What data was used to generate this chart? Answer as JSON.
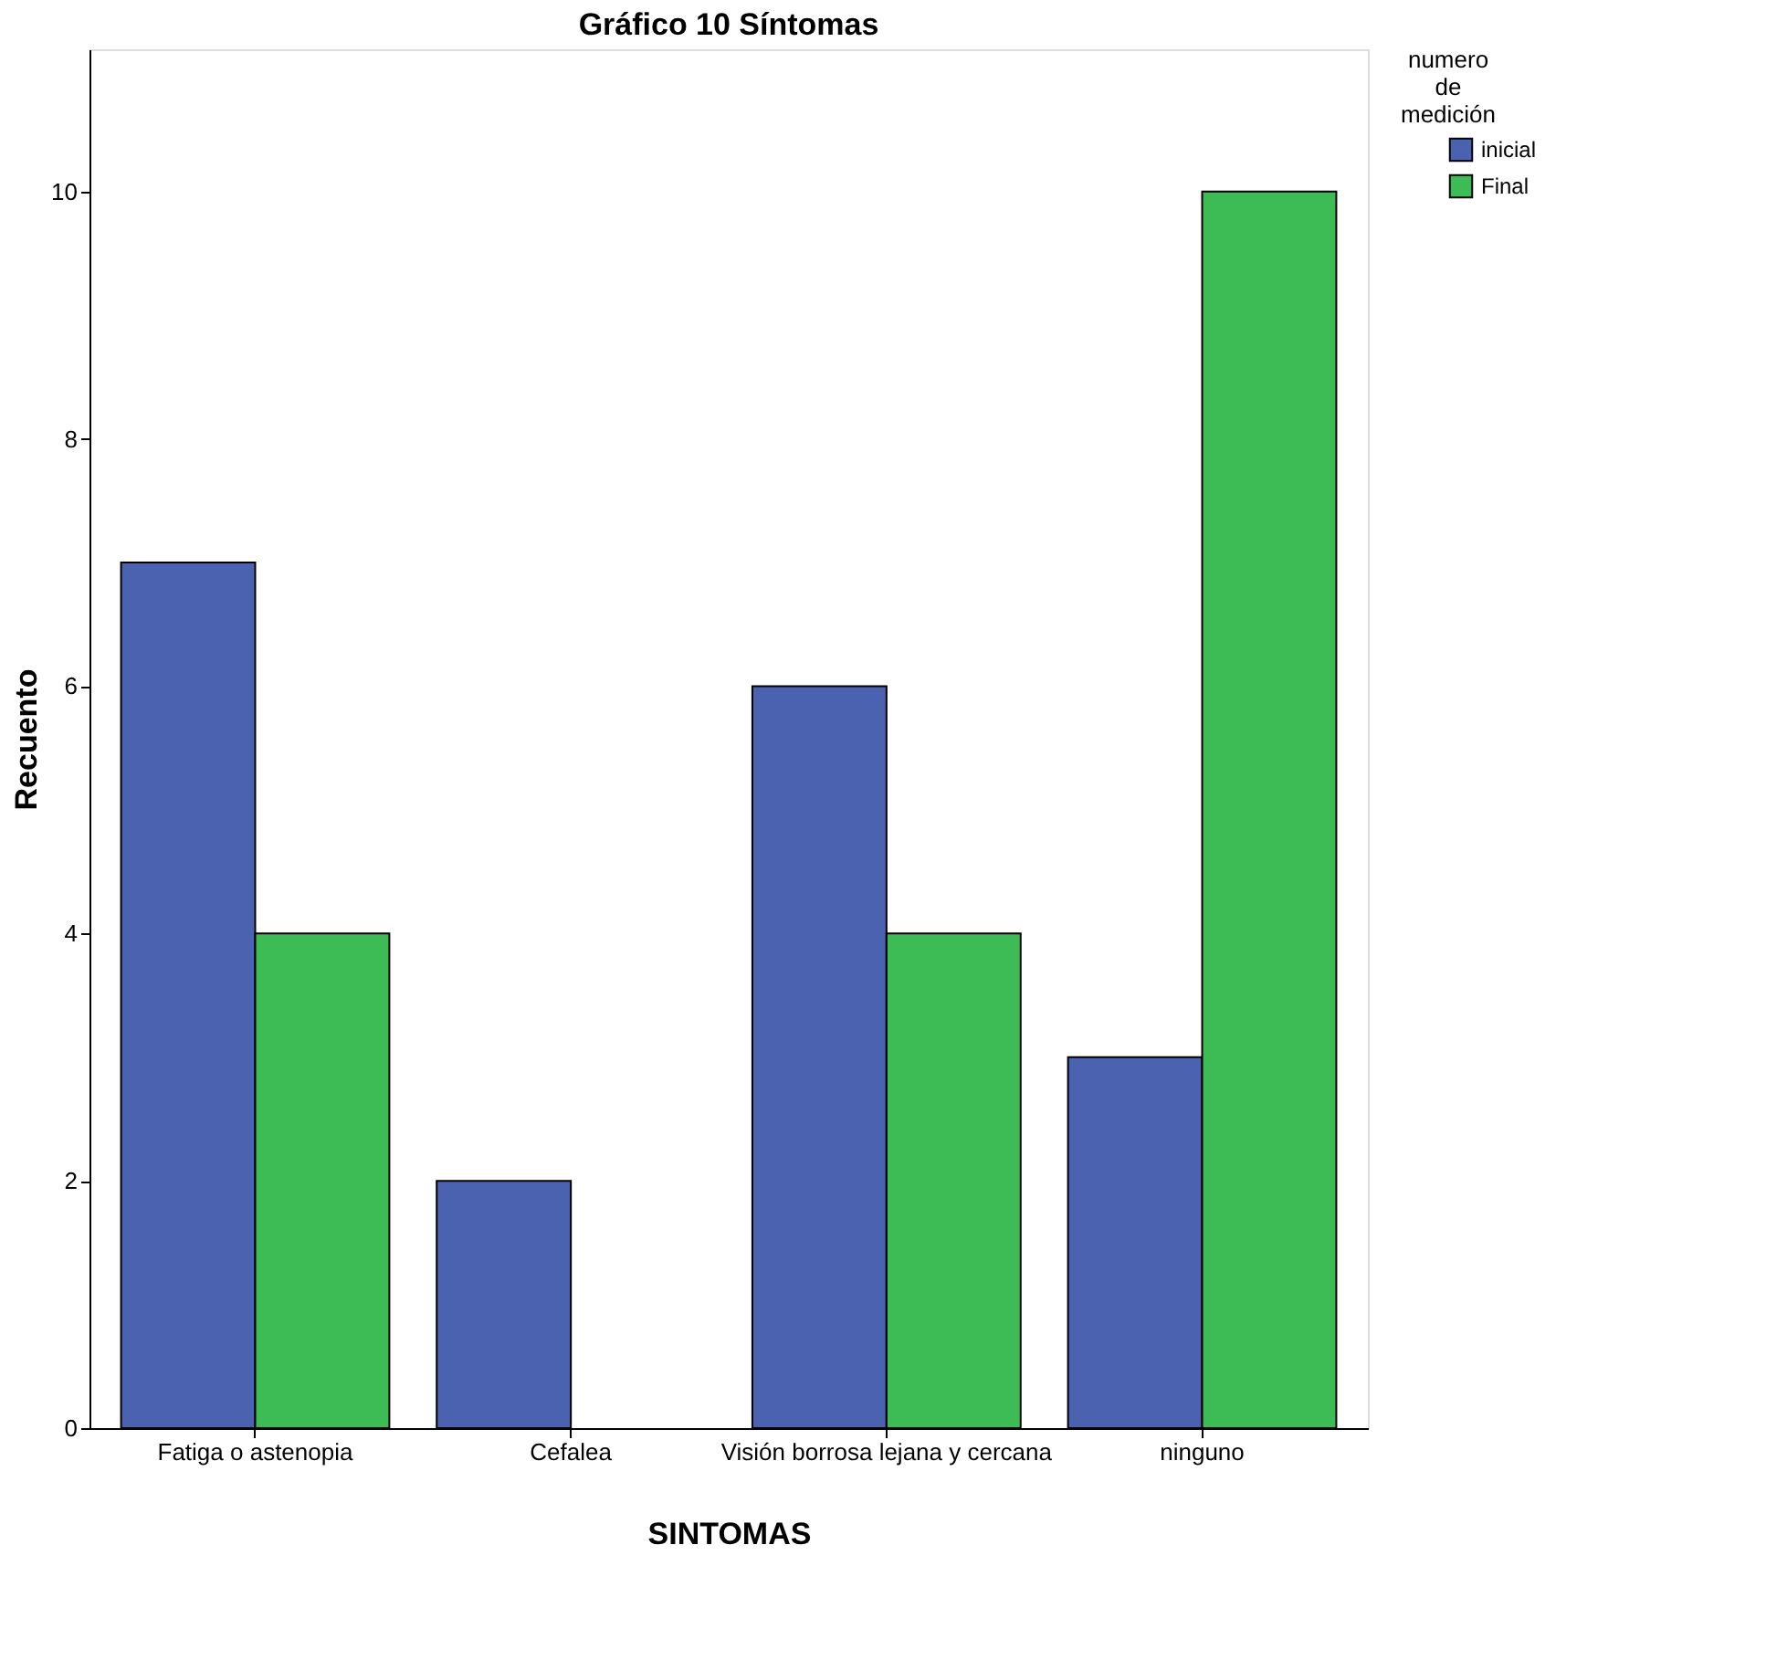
{
  "chart_data": {
    "type": "bar",
    "title": "Gráfico 10 Síntomas",
    "xlabel": "SINTOMAS",
    "ylabel": "Recuento",
    "legend_title": "numero de medición",
    "categories": [
      "Fatiga o astenopia",
      "Cefalea",
      "Visión borrosa lejana y cercana",
      "ninguno"
    ],
    "series": [
      {
        "name": "inicial",
        "color": "#4b62b0",
        "values": [
          7,
          2,
          6,
          3
        ]
      },
      {
        "name": "Final",
        "color": "#3dbb54",
        "values": [
          4,
          null,
          4,
          10
        ]
      }
    ],
    "ylim": [
      0,
      11.15
    ],
    "yticks": [
      0,
      2,
      4,
      6,
      8,
      10
    ],
    "grid": false,
    "legend": "top right"
  }
}
